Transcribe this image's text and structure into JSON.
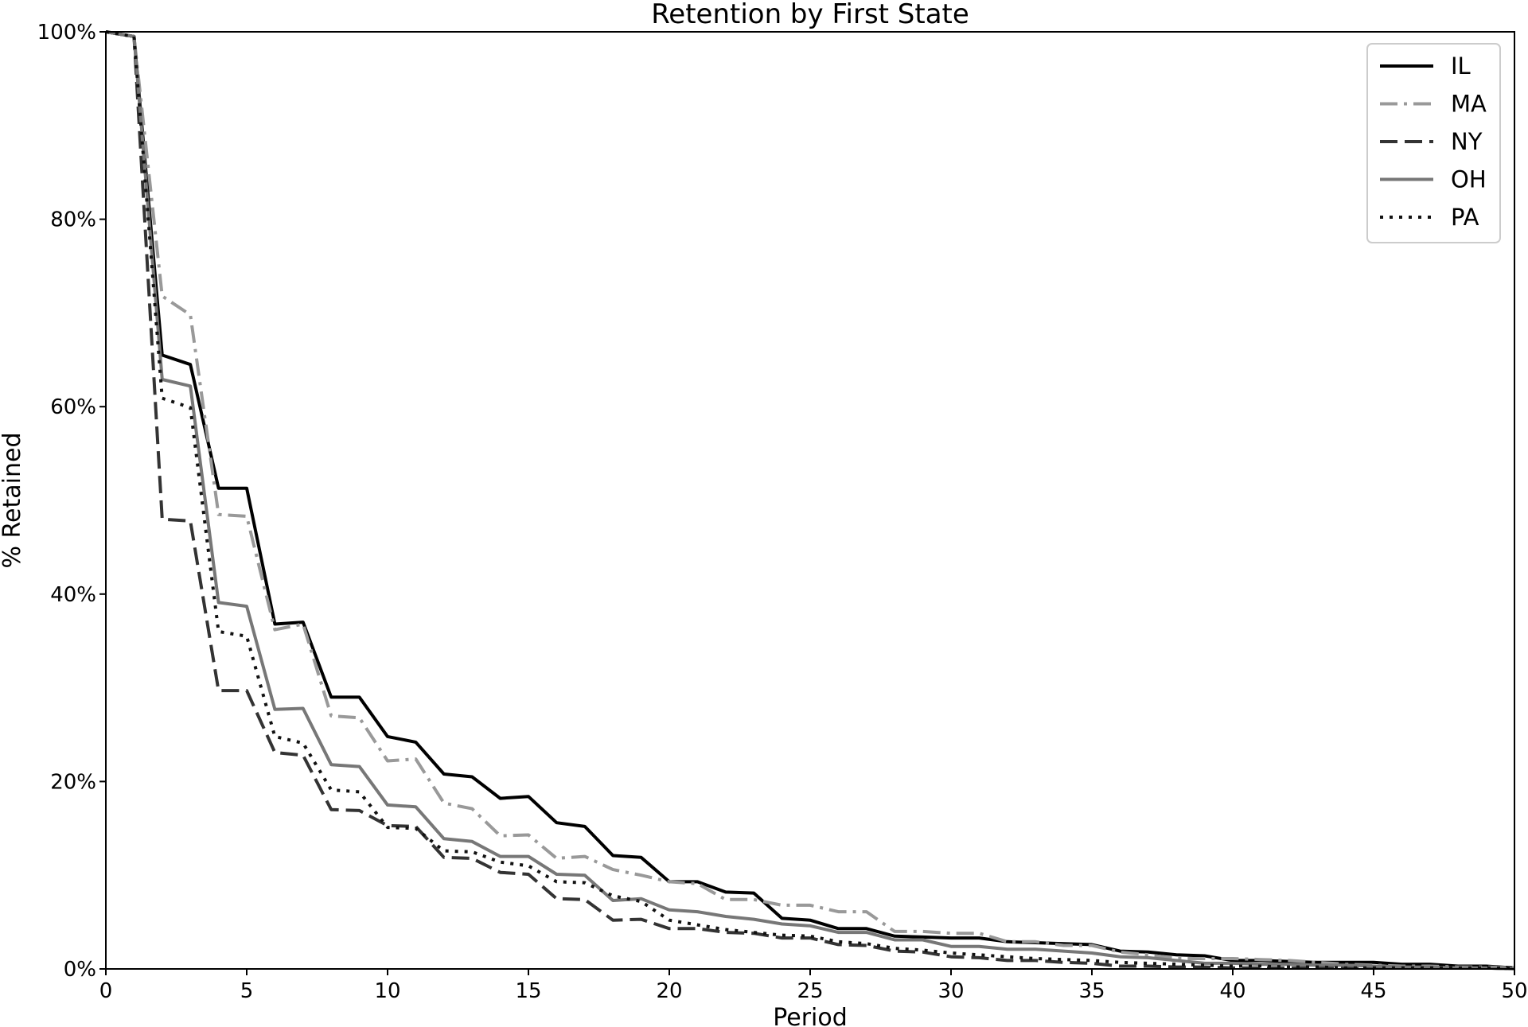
{
  "chart_data": {
    "type": "line",
    "title": "Retention by First State",
    "xlabel": "Period",
    "ylabel": "% Retained",
    "xlim": [
      0,
      50
    ],
    "ylim": [
      0,
      100
    ],
    "grid": false,
    "legend_position": "top-right",
    "x_ticks": [
      0,
      5,
      10,
      15,
      20,
      25,
      30,
      35,
      40,
      45,
      50
    ],
    "x_tick_labels": [
      "0",
      "5",
      "10",
      "15",
      "20",
      "25",
      "30",
      "35",
      "40",
      "45",
      "50"
    ],
    "y_ticks": [
      0,
      20,
      40,
      60,
      80,
      100
    ],
    "y_tick_labels": [
      "0%",
      "20%",
      "40%",
      "60%",
      "80%",
      "100%"
    ],
    "series": [
      {
        "name": "IL",
        "color": "#000000",
        "linestyle": "solid",
        "values": [
          100,
          99.5,
          65.5,
          64.5,
          51.3,
          51.3,
          36.8,
          37.0,
          29.0,
          29.0,
          24.8,
          24.2,
          20.8,
          20.5,
          18.2,
          18.4,
          15.6,
          15.2,
          12.1,
          11.9,
          9.3,
          9.3,
          8.2,
          8.1,
          5.4,
          5.2,
          4.3,
          4.3,
          3.5,
          3.4,
          3.3,
          3.3,
          2.9,
          2.8,
          2.7,
          2.6,
          1.9,
          1.8,
          1.5,
          1.4,
          0.9,
          0.9,
          0.8,
          0.7,
          0.7,
          0.7,
          0.5,
          0.5,
          0.3,
          0.3,
          0.1
        ]
      },
      {
        "name": "MA",
        "color": "#999999",
        "linestyle": "dashdot",
        "values": [
          100,
          99.5,
          71.8,
          69.8,
          48.5,
          48.3,
          36.2,
          36.8,
          27.0,
          26.8,
          22.2,
          22.4,
          17.7,
          17.1,
          14.2,
          14.3,
          11.8,
          12.0,
          10.6,
          10.0,
          9.3,
          9.1,
          7.4,
          7.4,
          6.8,
          6.8,
          6.1,
          6.1,
          4.0,
          4.0,
          3.8,
          3.8,
          2.9,
          2.9,
          2.5,
          2.5,
          1.8,
          1.5,
          1.1,
          1.1,
          1.1,
          1.0,
          0.9,
          0.7,
          0.5,
          0.4,
          0.3,
          0.3,
          0.2,
          0.2,
          0.1
        ]
      },
      {
        "name": "NY",
        "color": "#333333",
        "linestyle": "dashed",
        "values": [
          100,
          99.5,
          48.0,
          47.8,
          29.7,
          29.7,
          23.1,
          22.8,
          17.0,
          16.9,
          15.3,
          15.2,
          11.9,
          11.8,
          10.3,
          10.1,
          7.5,
          7.4,
          5.2,
          5.3,
          4.3,
          4.3,
          3.9,
          3.8,
          3.3,
          3.3,
          2.6,
          2.5,
          1.9,
          1.8,
          1.3,
          1.2,
          0.9,
          0.9,
          0.7,
          0.6,
          0.3,
          0.3,
          0.2,
          0.2,
          0.1,
          0.1,
          0.1,
          0.1,
          0.1,
          0.1,
          0.1,
          0.1,
          0.1,
          0.1,
          0.0
        ]
      },
      {
        "name": "OH",
        "color": "#777777",
        "linestyle": "solid",
        "values": [
          100,
          99.5,
          62.9,
          62.2,
          39.1,
          38.7,
          27.7,
          27.8,
          21.8,
          21.6,
          17.5,
          17.3,
          13.9,
          13.6,
          12.0,
          12.0,
          10.1,
          10.0,
          7.3,
          7.5,
          6.3,
          6.1,
          5.6,
          5.3,
          4.8,
          4.6,
          3.9,
          3.9,
          3.1,
          3.1,
          2.4,
          2.4,
          2.1,
          2.1,
          1.9,
          1.7,
          1.3,
          1.2,
          0.9,
          0.6,
          0.6,
          0.5,
          0.5,
          0.4,
          0.4,
          0.3,
          0.2,
          0.2,
          0.1,
          0.1,
          0.0
        ]
      },
      {
        "name": "PA",
        "color": "#111111",
        "linestyle": "dotted",
        "values": [
          100,
          99.5,
          60.9,
          59.9,
          36.0,
          35.5,
          24.8,
          24.1,
          19.1,
          18.9,
          15.1,
          15.0,
          12.6,
          12.5,
          11.4,
          11.0,
          9.3,
          9.2,
          7.8,
          7.2,
          5.2,
          4.7,
          4.2,
          3.9,
          3.6,
          3.5,
          2.9,
          2.7,
          2.2,
          2.0,
          1.7,
          1.5,
          1.3,
          1.1,
          1.0,
          0.9,
          0.7,
          0.6,
          0.5,
          0.4,
          0.3,
          0.3,
          0.2,
          0.2,
          0.1,
          0.1,
          0.1,
          0.1,
          0.1,
          0.1,
          0.1
        ]
      }
    ]
  }
}
